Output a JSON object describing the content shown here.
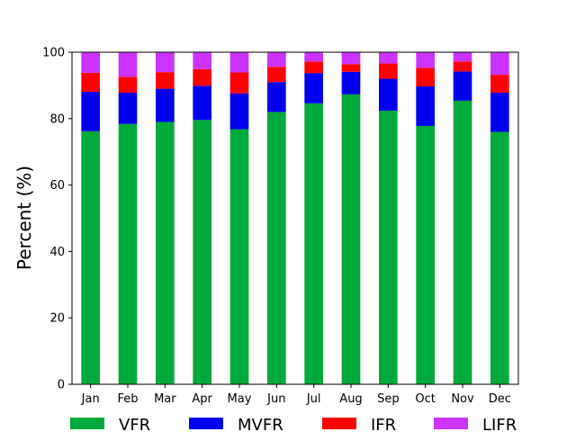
{
  "chart_data": {
    "type": "bar",
    "stacked": true,
    "title": "",
    "xlabel": "",
    "ylabel": "Percent (%)",
    "ylim": [
      0,
      100
    ],
    "yticks": [
      0,
      20,
      40,
      60,
      80,
      100
    ],
    "grid": false,
    "legend": "bottom",
    "categories": [
      "Jan",
      "Feb",
      "Mar",
      "Apr",
      "May",
      "Jun",
      "Jul",
      "Aug",
      "Sep",
      "Oct",
      "Nov",
      "Dec"
    ],
    "series": [
      {
        "name": "VFR",
        "color": "#00aa3c",
        "values": [
          76.2,
          78.4,
          79.0,
          79.6,
          76.8,
          82.0,
          84.6,
          87.3,
          82.4,
          77.8,
          85.4,
          76.0
        ]
      },
      {
        "name": "MVFR",
        "color": "#0000ee",
        "values": [
          11.9,
          9.4,
          10.0,
          10.3,
          10.8,
          9.0,
          9.1,
          6.8,
          9.6,
          11.9,
          8.8,
          11.8
        ]
      },
      {
        "name": "IFR",
        "color": "#ff0000",
        "values": [
          5.7,
          4.8,
          5.0,
          5.0,
          6.3,
          4.6,
          3.5,
          2.3,
          4.6,
          5.6,
          3.0,
          5.4
        ]
      },
      {
        "name": "LIFR",
        "color": "#cc33ff",
        "values": [
          6.2,
          7.4,
          6.0,
          5.1,
          6.1,
          4.4,
          2.8,
          3.6,
          3.4,
          4.7,
          2.8,
          6.8
        ]
      }
    ]
  }
}
